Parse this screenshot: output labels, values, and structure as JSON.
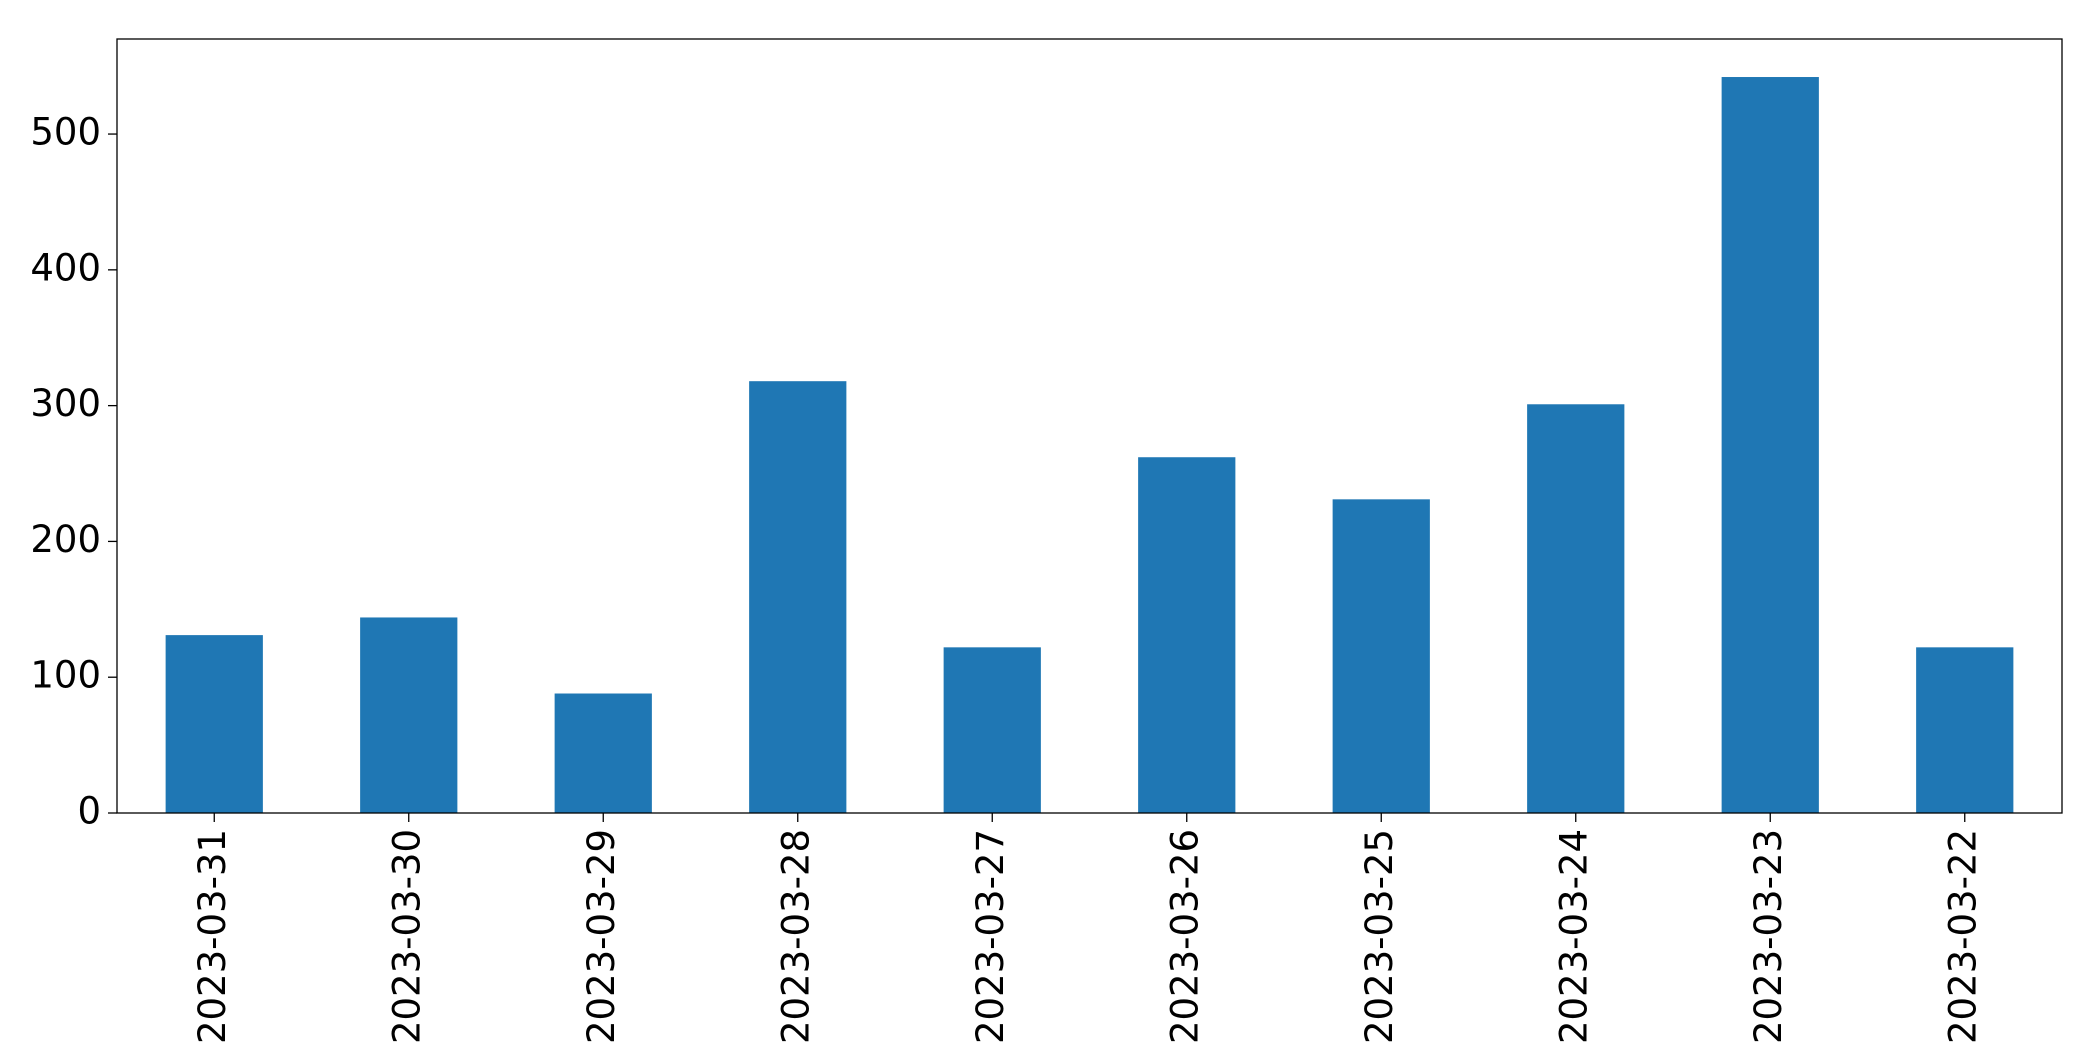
{
  "chart_data": {
    "type": "bar",
    "categories": [
      "2023-03-31",
      "2023-03-30",
      "2023-03-29",
      "2023-03-28",
      "2023-03-27",
      "2023-03-26",
      "2023-03-25",
      "2023-03-24",
      "2023-03-23",
      "2023-03-22"
    ],
    "values": [
      131,
      144,
      88,
      318,
      122,
      262,
      231,
      301,
      542,
      122
    ],
    "color": "#1f77b4",
    "ylim": [
      0,
      570
    ],
    "yticks": [
      0,
      100,
      200,
      300,
      400,
      500
    ],
    "grid": false
  }
}
